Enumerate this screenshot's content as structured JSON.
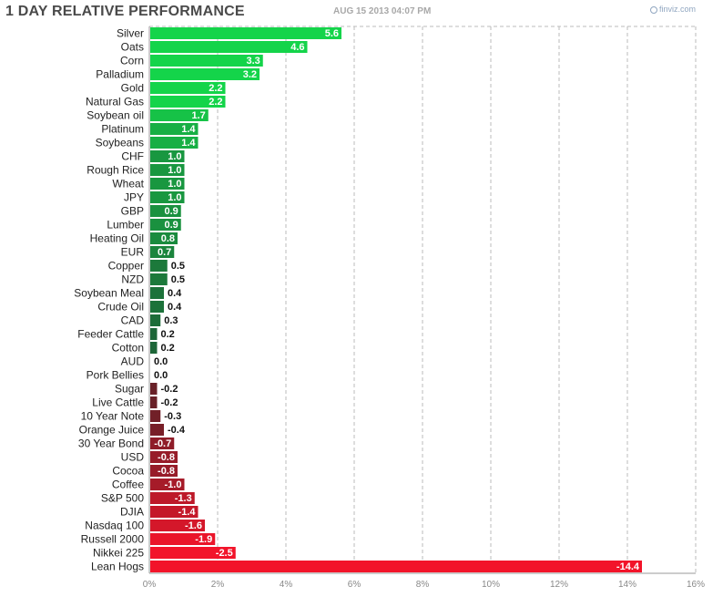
{
  "header": {
    "title": "1 DAY RELATIVE PERFORMANCE",
    "timestamp": "AUG 15 2013 04:07 PM",
    "brand": "finviz.com"
  },
  "colors": {
    "positive_strong": "#14d44a",
    "positive_weak": "#1e5a36",
    "negative_weak": "#5a2228",
    "negative_strong": "#f2142a",
    "grid": "#bbbbbb",
    "axis": "#999999"
  },
  "chart_data": {
    "type": "bar",
    "orientation": "horizontal",
    "title": "1 DAY RELATIVE PERFORMANCE",
    "categories": [
      "Silver",
      "Oats",
      "Corn",
      "Palladium",
      "Gold",
      "Natural Gas",
      "Soybean oil",
      "Platinum",
      "Soybeans",
      "CHF",
      "Rough Rice",
      "Wheat",
      "JPY",
      "GBP",
      "Lumber",
      "Heating Oil",
      "EUR",
      "Copper",
      "NZD",
      "Soybean Meal",
      "Crude Oil",
      "CAD",
      "Feeder Cattle",
      "Cotton",
      "AUD",
      "Pork Bellies",
      "Sugar",
      "Live Cattle",
      "10 Year Note",
      "Orange Juice",
      "30 Year Bond",
      "USD",
      "Cocoa",
      "Coffee",
      "S&P 500",
      "DJIA",
      "Nasdaq 100",
      "Russell 2000",
      "Nikkei 225",
      "Lean Hogs"
    ],
    "values": [
      5.6,
      4.6,
      3.3,
      3.2,
      2.2,
      2.2,
      1.7,
      1.4,
      1.4,
      1.0,
      1.0,
      1.0,
      1.0,
      0.9,
      0.9,
      0.8,
      0.7,
      0.5,
      0.5,
      0.4,
      0.4,
      0.3,
      0.2,
      0.2,
      0.0,
      0.0,
      -0.2,
      -0.2,
      -0.3,
      -0.4,
      -0.7,
      -0.8,
      -0.8,
      -1.0,
      -1.3,
      -1.4,
      -1.6,
      -1.9,
      -2.5,
      -14.4
    ],
    "value_labels": [
      "5.6",
      "4.6",
      "3.3",
      "3.2",
      "2.2",
      "2.2",
      "1.7",
      "1.4",
      "1.4",
      "1.0",
      "1.0",
      "1.0",
      "1.0",
      "0.9",
      "0.9",
      "0.8",
      "0.7",
      "0.5",
      "0.5",
      "0.4",
      "0.4",
      "0.3",
      "0.2",
      "0.2",
      "0.0",
      "0.0",
      "-0.2",
      "-0.2",
      "-0.3",
      "-0.4",
      "-0.7",
      "-0.8",
      "-0.8",
      "-1.0",
      "-1.3",
      "-1.4",
      "-1.6",
      "-1.9",
      "-2.5",
      "-14.4"
    ],
    "xaxis": {
      "range": [
        0,
        16
      ],
      "ticks": [
        0,
        2,
        4,
        6,
        8,
        10,
        12,
        14,
        16
      ],
      "tick_labels": [
        "0%",
        "2%",
        "4%",
        "6%",
        "8%",
        "10%",
        "12%",
        "14%",
        "16%"
      ],
      "scale": "absolute value"
    },
    "grid": true,
    "legend": "none"
  }
}
